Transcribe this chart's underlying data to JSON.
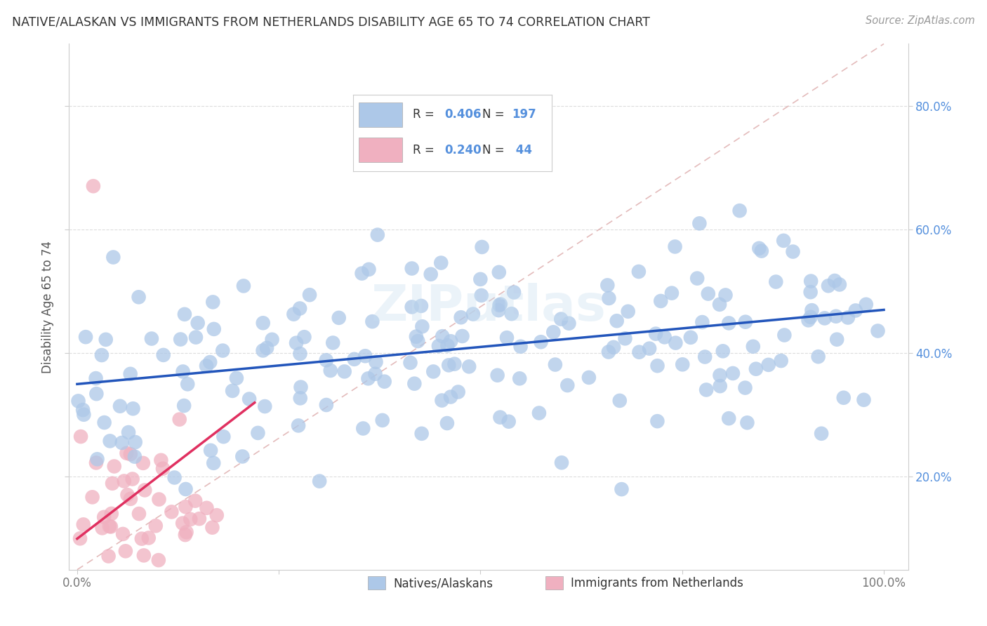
{
  "title": "NATIVE/ALASKAN VS IMMIGRANTS FROM NETHERLANDS DISABILITY AGE 65 TO 74 CORRELATION CHART",
  "source": "Source: ZipAtlas.com",
  "ylabel": "Disability Age 65 to 74",
  "xlabel": "",
  "blue_R": 0.406,
  "blue_N": 197,
  "pink_R": 0.24,
  "pink_N": 44,
  "blue_color": "#adc8e8",
  "blue_edge_color": "#adc8e8",
  "blue_line_color": "#2255bb",
  "pink_color": "#f0b0c0",
  "pink_edge_color": "#f0b0c0",
  "pink_line_color": "#e03060",
  "ref_line_color": "#e0a0b0",
  "legend_label_blue": "Natives/Alaskans",
  "legend_label_pink": "Immigrants from Netherlands",
  "watermark": "ZIPutlas",
  "right_axis_color": "#5590dd",
  "background_color": "#ffffff",
  "grid_color": "#dddddd",
  "title_color": "#333333",
  "source_color": "#999999",
  "ylabel_color": "#555555",
  "tick_color": "#777777"
}
